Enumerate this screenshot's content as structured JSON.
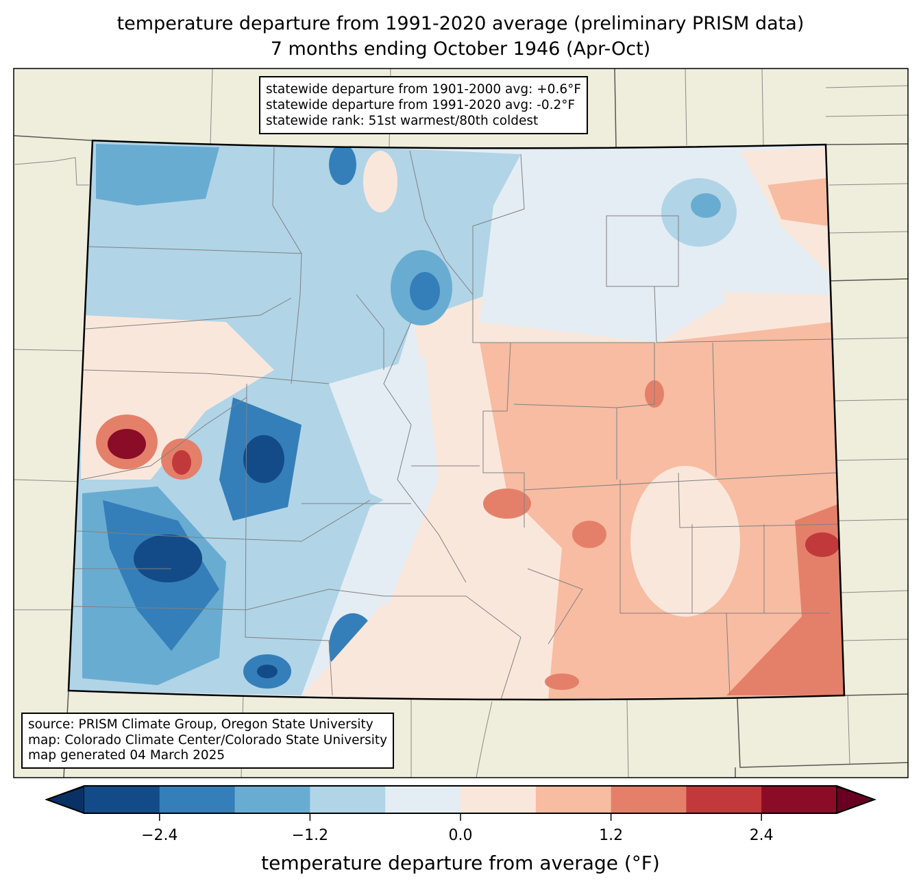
{
  "title": {
    "line1": "temperature departure from 1991-2020 average (preliminary PRISM data)",
    "line2": "7 months ending October 1946 (Apr-Oct)"
  },
  "stats_box": {
    "line1": "statewide departure from 1901-2000 avg: +0.6°F",
    "line2": "statewide departure from 1991-2020 avg: -0.2°F",
    "line3": "statewide rank: 51st warmest/80th coldest"
  },
  "credits_box": {
    "line1": "source: PRISM Climate Group, Oregon State University",
    "line2": "map: Colorado Climate Center/Colorado State University",
    "line3": "map generated 04 March 2025"
  },
  "colorbar": {
    "label": "temperature departure from average (°F)",
    "bounds": [
      -3.0,
      -2.4,
      -1.8,
      -1.2,
      -0.6,
      0.0,
      0.6,
      1.2,
      1.8,
      2.4,
      3.0
    ],
    "colors": [
      "#134b88",
      "#347fba",
      "#69acd2",
      "#b1d4e7",
      "#e4edf4",
      "#fae7dc",
      "#f7bca2",
      "#e4806a",
      "#c2393c",
      "#8a0c26"
    ],
    "under_color": "#093166",
    "over_color": "#690021",
    "ticks": [
      "−2.4",
      "−1.2",
      "0.0",
      "1.2",
      "2.4"
    ],
    "tick_values": [
      -2.4,
      -1.2,
      0.0,
      1.2,
      2.4
    ]
  },
  "map_colors": {
    "land": "#efeedc",
    "county_line": "#808080"
  }
}
